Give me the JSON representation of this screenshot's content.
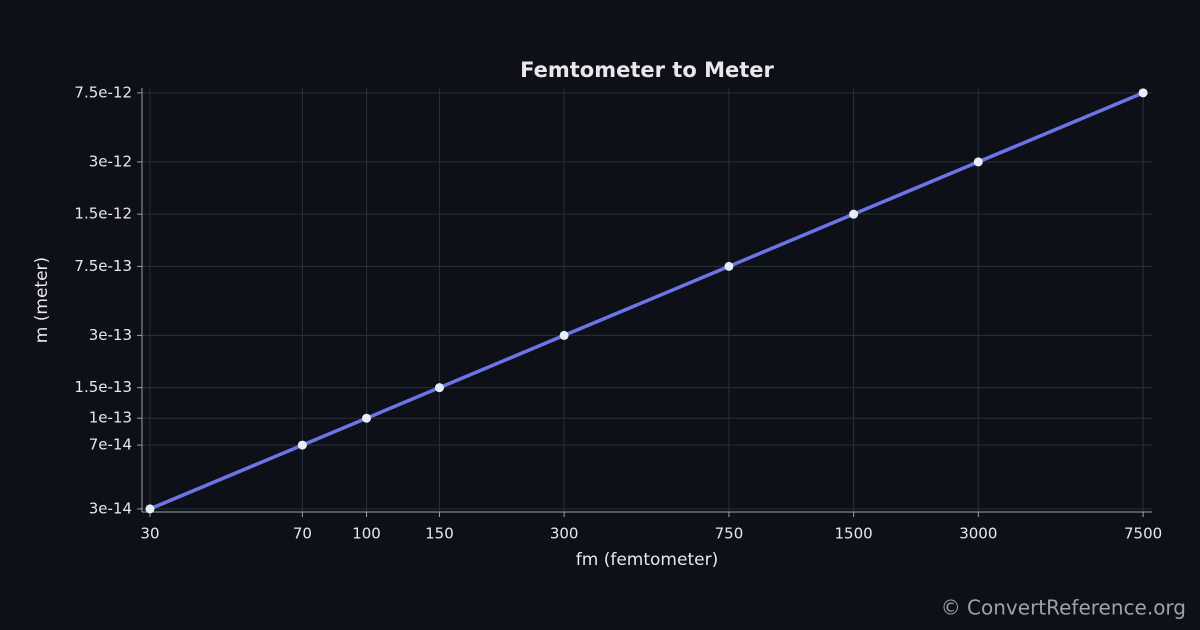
{
  "chart_data": {
    "type": "line",
    "title": "Femtometer to Meter",
    "x_label": "fm (femtometer)",
    "y_label": "m (meter)",
    "x": [
      30,
      70,
      100,
      150,
      300,
      750,
      1500,
      3000,
      7500
    ],
    "values": [
      3e-14,
      7e-14,
      1e-13,
      1.5e-13,
      3e-13,
      7.5e-13,
      1.5e-12,
      3e-12,
      7.5e-12
    ],
    "color": "#6b74e8",
    "marker_color": "#e8edf5",
    "xscale": "log",
    "yscale": "log",
    "xlim": [
      28.7,
      7880
    ],
    "ylim": [
      2.88e-14,
      8e-12
    ],
    "xticks": [
      30,
      70,
      100,
      150,
      300,
      750,
      1500,
      3000,
      7500
    ],
    "yticks": [
      {
        "value": 3e-14,
        "label": "3e-14"
      },
      {
        "value": 7e-14,
        "label": "7e-14"
      },
      {
        "value": 1e-13,
        "label": "1e-13"
      },
      {
        "value": 1.5e-13,
        "label": "1.5e-13"
      },
      {
        "value": 3e-13,
        "label": "3e-13"
      },
      {
        "value": 7.5e-13,
        "label": "7.5e-13"
      },
      {
        "value": 1.5e-12,
        "label": "1.5e-12"
      },
      {
        "value": 3e-12,
        "label": "3e-12"
      },
      {
        "value": 7.5e-12,
        "label": "7.5e-12"
      }
    ],
    "grid": true
  },
  "credit": "© ConvertReference.org"
}
